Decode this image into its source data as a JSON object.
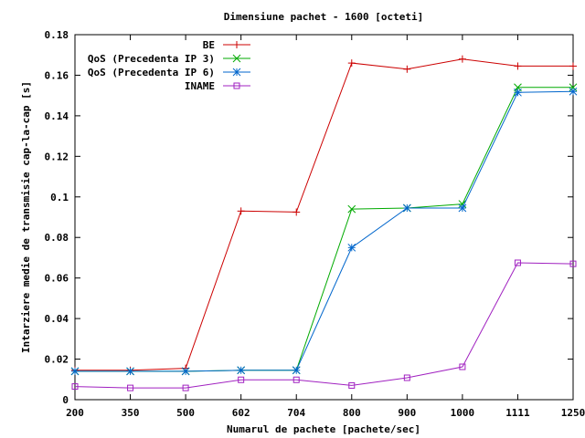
{
  "chart_data": {
    "type": "line",
    "title": "Dimensiune pachet - 1600 [octeti]",
    "xlabel": "Numarul de pachete [pachete/sec]",
    "ylabel": "Intarziere medie de transmisie cap-la-cap [s]",
    "categories": [
      "200",
      "350",
      "500",
      "602",
      "704",
      "800",
      "900",
      "1000",
      "1111",
      "1250"
    ],
    "ylim": [
      0,
      0.18
    ],
    "yticks": [
      "0",
      "0.02",
      "0.04",
      "0.06",
      "0.08",
      "0.1",
      "0.12",
      "0.14",
      "0.16",
      "0.18"
    ],
    "grid": false,
    "legend_position": "top-left",
    "series": [
      {
        "name": "BE",
        "color": "#cc0000",
        "marker": "plus",
        "values": [
          0.0145,
          0.0145,
          0.0155,
          0.093,
          0.0925,
          0.166,
          0.163,
          0.168,
          0.1645,
          0.1645
        ]
      },
      {
        "name": "QoS (Precedenta IP 3)",
        "color": "#00aa00",
        "marker": "cross",
        "values": [
          0.014,
          0.014,
          0.014,
          0.0145,
          0.0145,
          0.094,
          0.0945,
          0.0965,
          0.154,
          0.154
        ]
      },
      {
        "name": "QoS (Precedenta IP 6)",
        "color": "#0066cc",
        "marker": "star",
        "values": [
          0.014,
          0.014,
          0.014,
          0.0145,
          0.0145,
          0.075,
          0.0945,
          0.0945,
          0.1515,
          0.152
        ]
      },
      {
        "name": "INAME",
        "color": "#a020c0",
        "marker": "square",
        "values": [
          0.0065,
          0.0058,
          0.0058,
          0.0098,
          0.0098,
          0.007,
          0.0108,
          0.0162,
          0.0675,
          0.067
        ]
      }
    ]
  }
}
